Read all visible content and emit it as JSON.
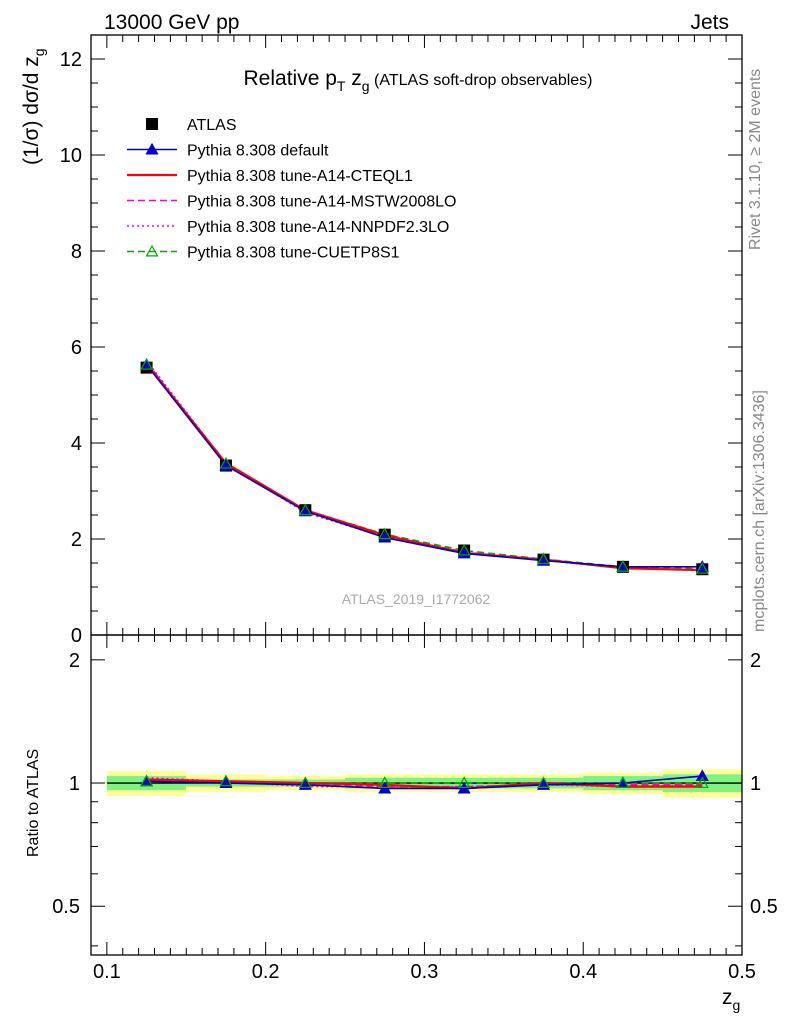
{
  "header": {
    "left": "13000 GeV pp",
    "right": "Jets"
  },
  "side_labels": {
    "rivet": "Rivet 3.1.10, ≥ 2M events",
    "mcplots": "mcplots.cern.ch [arXiv:1306.3436]"
  },
  "chart_data": {
    "type": "line",
    "title_parts": {
      "a": "Relative p",
      "sub_t": "T",
      "b": " z",
      "sub_g": "g",
      "c": " (ATLAS soft-drop observables)"
    },
    "analysis_id": "ATLAS_2019_I1772062",
    "xlabel": "z",
    "xlabel_sub": "g",
    "ylabel": "(1/σ) dσ/d z",
    "ylabel_sub": "g",
    "ratio_ylabel": "Ratio to ATLAS",
    "xlim": [
      0.09,
      0.5
    ],
    "ylim": [
      0,
      12.5
    ],
    "ratio_ylim": [
      0.38,
      2.3
    ],
    "xticks": [
      "0.1",
      "0.2",
      "0.3",
      "0.4",
      "0.5"
    ],
    "yticks": [
      "0",
      "2",
      "4",
      "6",
      "8",
      "10",
      "12"
    ],
    "ratio_yticks": [
      "0.5",
      "1",
      "2"
    ],
    "x": [
      0.125,
      0.175,
      0.225,
      0.275,
      0.325,
      0.375,
      0.425,
      0.475
    ],
    "legend_position": "top-left",
    "band_inner_color": "#7ff27f",
    "band_outer_color": "#ffff99",
    "data": {
      "name": "ATLAS",
      "values": [
        5.57,
        3.53,
        2.6,
        2.09,
        1.76,
        1.57,
        1.42,
        1.37
      ],
      "band_inner": [
        0.04,
        0.02,
        0.02,
        0.03,
        0.03,
        0.03,
        0.04,
        0.05
      ],
      "band_outer": [
        0.07,
        0.05,
        0.04,
        0.05,
        0.05,
        0.05,
        0.06,
        0.08
      ]
    },
    "series": [
      {
        "name": "Pythia 8.308 default",
        "color": "#0000cc",
        "style": "solid",
        "marker": "filled-triangle",
        "values": [
          5.63,
          3.53,
          2.58,
          2.03,
          1.7,
          1.55,
          1.42,
          1.42
        ],
        "ratio": [
          1.01,
          1.0,
          0.99,
          0.97,
          0.97,
          0.99,
          1.0,
          1.04
        ]
      },
      {
        "name": "Pythia 8.308 tune-A14-CTEQL1",
        "color": "#ff0000",
        "style": "solid",
        "marker": "none",
        "values": [
          5.65,
          3.58,
          2.6,
          2.08,
          1.71,
          1.57,
          1.39,
          1.35
        ],
        "ratio": [
          1.02,
          1.01,
          1.0,
          0.99,
          0.97,
          1.0,
          0.98,
          0.98
        ]
      },
      {
        "name": "Pythia 8.308 tune-A14-MSTW2008LO",
        "color": "#ff00bb",
        "style": "dashed",
        "marker": "none",
        "values": [
          5.68,
          3.56,
          2.58,
          2.06,
          1.73,
          1.56,
          1.4,
          1.36
        ],
        "ratio": [
          1.02,
          1.01,
          0.99,
          0.98,
          0.98,
          0.99,
          0.99,
          0.99
        ]
      },
      {
        "name": "Pythia 8.308 tune-A14-NNPDF2.3LO",
        "color": "#ff00dd",
        "style": "dotted",
        "marker": "none",
        "values": [
          5.72,
          3.57,
          2.55,
          2.04,
          1.72,
          1.56,
          1.4,
          1.36
        ],
        "ratio": [
          1.03,
          1.01,
          0.98,
          0.98,
          0.98,
          0.99,
          0.98,
          0.99
        ]
      },
      {
        "name": "Pythia 8.308 tune-CUETP8S1",
        "color": "#00aa00",
        "style": "dashed",
        "marker": "open-triangle",
        "values": [
          5.63,
          3.57,
          2.6,
          2.1,
          1.76,
          1.58,
          1.42,
          1.38
        ],
        "ratio": [
          1.01,
          1.01,
          1.0,
          1.0,
          1.0,
          1.0,
          1.0,
          1.0
        ]
      }
    ]
  }
}
